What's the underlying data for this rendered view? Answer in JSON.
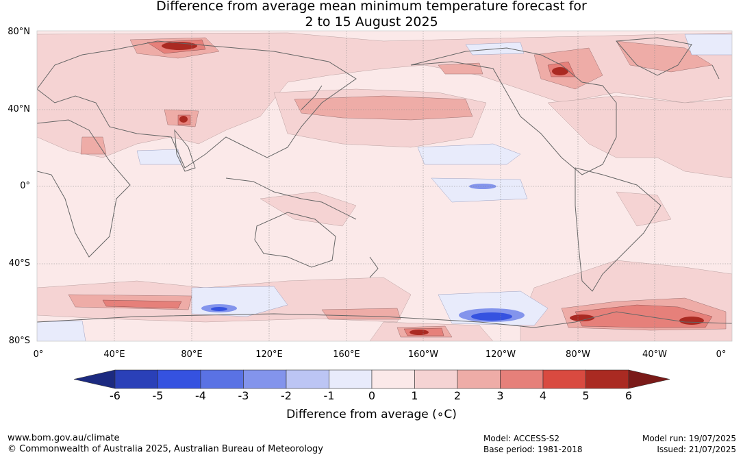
{
  "title": {
    "line1": "Difference from average mean minimum temperature forecast for",
    "line2": "2 to 15 August 2025"
  },
  "map": {
    "lat_labels": [
      "80°N",
      "40°N",
      "0°",
      "40°S",
      "80°S"
    ],
    "lon_labels": [
      "0°",
      "40°E",
      "80°E",
      "120°E",
      "160°E",
      "160°W",
      "120°W",
      "80°W",
      "40°W",
      "0°"
    ],
    "projection": "equirectangular-pacific-centred",
    "gridlines": true
  },
  "legend": {
    "title": "Difference from average (∘C)",
    "tick_labels": [
      "-6",
      "-5",
      "-4",
      "-3",
      "-2",
      "-1",
      "0",
      "1",
      "2",
      "3",
      "4",
      "5",
      "6"
    ],
    "colors": [
      "#1c2a80",
      "#2a40b8",
      "#3552e0",
      "#5a72e4",
      "#8394ec",
      "#bcc5f4",
      "#e8ebfb",
      "#fbe9e9",
      "#f5d3d3",
      "#eeaca7",
      "#e6807a",
      "#d94a40",
      "#aa2a22",
      "#7a1a18"
    ]
  },
  "footer": {
    "url": "www.bom.gov.au/climate",
    "copyright": "© Commonwealth of Australia 2025, Australian Bureau of Meteorology",
    "model": "Model: ACCESS-S2",
    "base_period": "Base period: 1981-2018",
    "model_run": "Model run: 19/07/2025",
    "issued": "Issued: 21/07/2025"
  }
}
